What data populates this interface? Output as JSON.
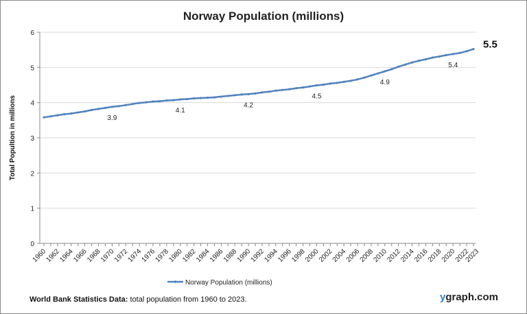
{
  "chart_data": {
    "type": "line",
    "title": "Norway Population (millions)",
    "ylabel": "Total Popultion  in millions",
    "xlabel": "",
    "ylim": [
      0,
      6
    ],
    "yticks": [
      0,
      1,
      2,
      3,
      4,
      5,
      6
    ],
    "xticks": [
      1960,
      1962,
      1964,
      1966,
      1968,
      1970,
      1972,
      1974,
      1976,
      1978,
      1980,
      1982,
      1984,
      1986,
      1988,
      1990,
      1992,
      1994,
      1996,
      1998,
      2000,
      2002,
      2004,
      2006,
      2008,
      2010,
      2012,
      2014,
      2016,
      2018,
      2020,
      2022,
      2023
    ],
    "grid": true,
    "legend": "bottom",
    "series": [
      {
        "name": "Norway Population (millions)",
        "color": "#4f81bd",
        "x": [
          1960,
          1961,
          1962,
          1963,
          1964,
          1965,
          1966,
          1967,
          1968,
          1969,
          1970,
          1971,
          1972,
          1973,
          1974,
          1975,
          1976,
          1977,
          1978,
          1979,
          1980,
          1981,
          1982,
          1983,
          1984,
          1985,
          1986,
          1987,
          1988,
          1989,
          1990,
          1991,
          1992,
          1993,
          1994,
          1995,
          1996,
          1997,
          1998,
          1999,
          2000,
          2001,
          2002,
          2003,
          2004,
          2005,
          2006,
          2007,
          2008,
          2009,
          2010,
          2011,
          2012,
          2013,
          2014,
          2015,
          2016,
          2017,
          2018,
          2019,
          2020,
          2021,
          2022,
          2023
        ],
        "values": [
          3.58,
          3.61,
          3.64,
          3.67,
          3.69,
          3.72,
          3.75,
          3.79,
          3.82,
          3.85,
          3.88,
          3.9,
          3.93,
          3.96,
          3.99,
          4.01,
          4.03,
          4.04,
          4.06,
          4.07,
          4.09,
          4.1,
          4.12,
          4.13,
          4.14,
          4.15,
          4.17,
          4.19,
          4.21,
          4.23,
          4.24,
          4.26,
          4.29,
          4.31,
          4.34,
          4.36,
          4.38,
          4.41,
          4.43,
          4.46,
          4.49,
          4.51,
          4.54,
          4.56,
          4.59,
          4.62,
          4.66,
          4.71,
          4.77,
          4.83,
          4.89,
          4.95,
          5.02,
          5.08,
          5.14,
          5.19,
          5.23,
          5.28,
          5.31,
          5.35,
          5.38,
          5.41,
          5.46,
          5.52
        ]
      }
    ],
    "annotations": [
      {
        "x": 1970,
        "label": "3.9"
      },
      {
        "x": 1980,
        "label": "4.1"
      },
      {
        "x": 1990,
        "label": "4.2"
      },
      {
        "x": 2000,
        "label": "4.5"
      },
      {
        "x": 2010,
        "label": "4.9"
      },
      {
        "x": 2020,
        "label": "5.4"
      },
      {
        "x": 2023,
        "label": "5.5",
        "emphasis": true
      }
    ]
  },
  "footer": {
    "source_bold": "World Bank Statistics Data:",
    "source_text": " total population from 1960 to  2023."
  },
  "brand": {
    "y": "y",
    "rest": "graph.com"
  }
}
